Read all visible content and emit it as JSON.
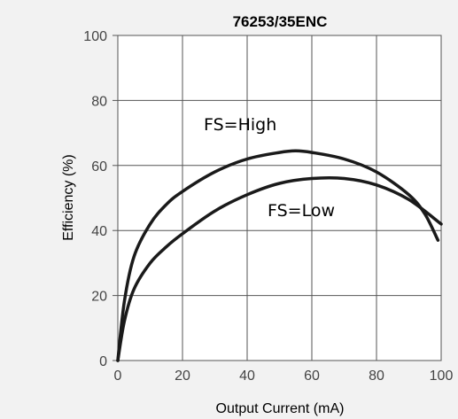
{
  "chart_data": {
    "type": "line",
    "title": "76253/35ENC",
    "xlabel": "Output Current (mA)",
    "ylabel": "Efficiency (%)",
    "xlim": [
      0,
      100
    ],
    "ylim": [
      0,
      100
    ],
    "xticks": [
      "0",
      "20",
      "40",
      "60",
      "80",
      "100"
    ],
    "yticks": [
      "0",
      "20",
      "40",
      "60",
      "80",
      "100"
    ],
    "grid": true,
    "series": [
      {
        "name": "FS=High",
        "x": [
          0,
          2,
          5,
          10,
          15,
          20,
          30,
          40,
          50,
          55,
          60,
          70,
          80,
          90,
          95,
          99
        ],
        "y": [
          0,
          18,
          32,
          42,
          48,
          52,
          58,
          62,
          64,
          64.5,
          64,
          62,
          58,
          51,
          45,
          37
        ]
      },
      {
        "name": "FS=Low",
        "x": [
          0,
          2,
          5,
          10,
          15,
          20,
          30,
          40,
          50,
          60,
          70,
          80,
          90,
          100
        ],
        "y": [
          0,
          12,
          22,
          30,
          35,
          39,
          46,
          51,
          54.5,
          56,
          56,
          54,
          49.5,
          42
        ]
      }
    ],
    "annotations": [
      "FS=High",
      "FS=Low"
    ]
  }
}
